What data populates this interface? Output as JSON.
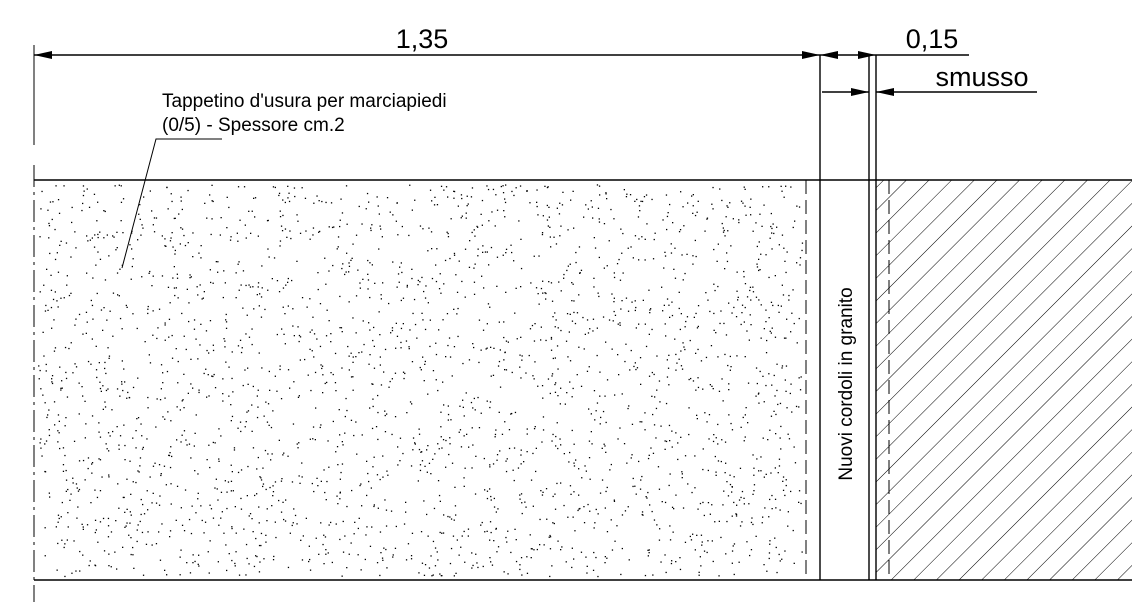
{
  "dimensions": {
    "main_width": "1,35",
    "curb_width": "0,15",
    "chamfer": "smusso"
  },
  "annotation": {
    "line1": "Tappetino d'usura per marciapiedi",
    "line2": "(0/5) - Spessore cm.2"
  },
  "curb_label": "Nuovi cordoli in granito"
}
